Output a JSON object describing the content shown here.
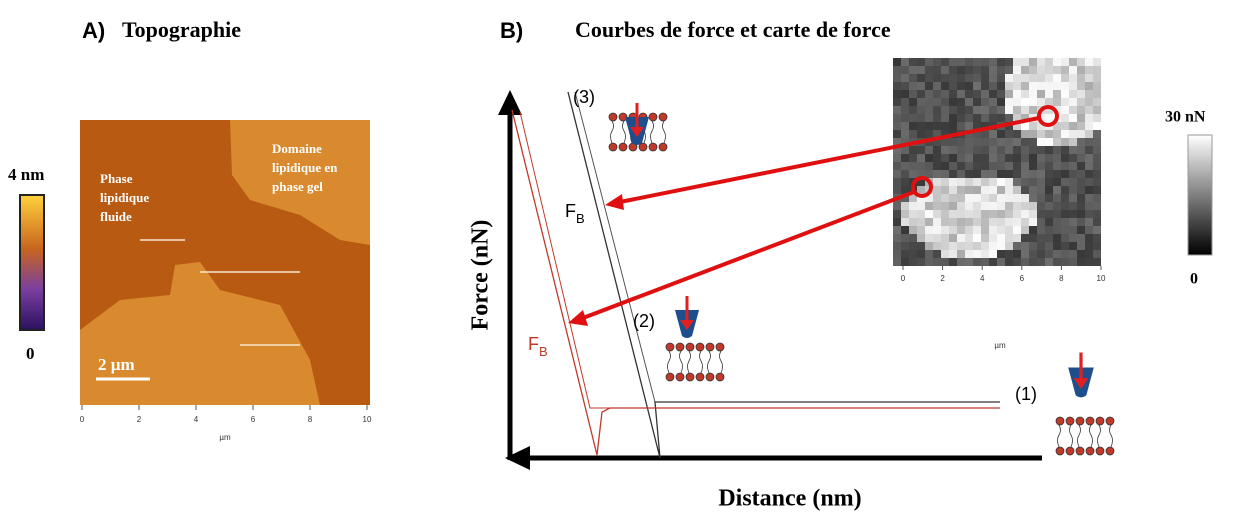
{
  "panel_a": {
    "letter": "A)",
    "title": "Topographie",
    "colorbar": {
      "max_label": "4 nm",
      "min_label": "0"
    },
    "labels": {
      "fluid": [
        "Phase",
        "lipidique",
        "fluide"
      ],
      "gel": [
        "Domaine",
        "lipidique en",
        "phase gel"
      ]
    },
    "scale_bar": "2 µm",
    "xticks": [
      0,
      2,
      4,
      6,
      8,
      10
    ],
    "x_unit": "µm"
  },
  "panel_b": {
    "letter": "B)",
    "title": "Courbes de force et carte de force",
    "y_label": "Force (nN)",
    "x_label": "Distance (nm)",
    "steps": [
      "(3)",
      "(2)",
      "(1)"
    ],
    "fb_black": {
      "main": "F",
      "sub": "B"
    },
    "fb_red": {
      "main": "F",
      "sub": "B"
    },
    "map": {
      "colorbar": {
        "max_label": "30 nN",
        "min_label": "0"
      },
      "xticks": [
        0,
        2,
        4,
        6,
        8,
        10
      ],
      "x_unit": "µm"
    }
  }
}
